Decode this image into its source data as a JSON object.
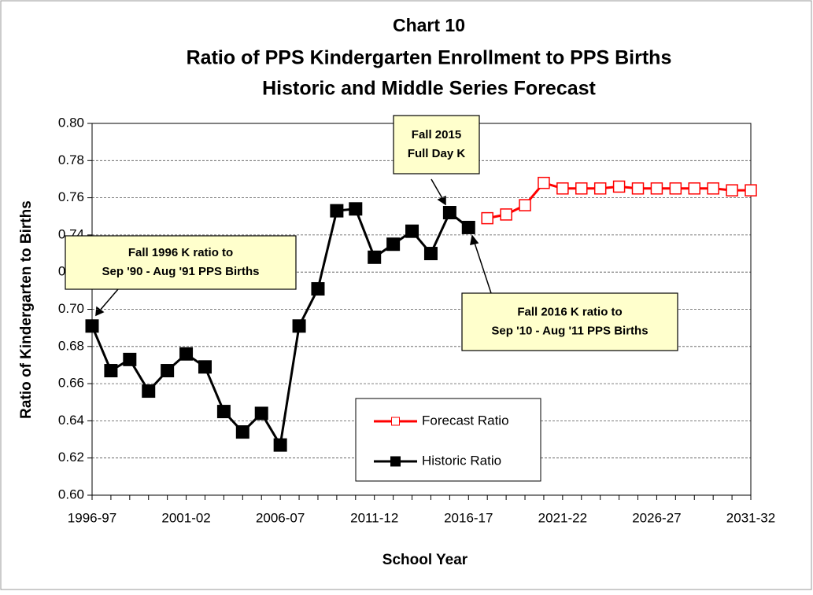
{
  "chart_data": {
    "type": "line",
    "title": "Chart 10",
    "subtitle": [
      "Ratio of PPS Kindergarten Enrollment to PPS Births",
      "Historic and Middle Series Forecast"
    ],
    "x_label": "School Year",
    "y_label": "Ratio of Kindergarten to Births",
    "categories": [
      "1996-97",
      null,
      null,
      null,
      null,
      "2001-02",
      null,
      null,
      null,
      null,
      "2006-07",
      null,
      null,
      null,
      null,
      "2011-12",
      null,
      null,
      null,
      null,
      "2016-17",
      null,
      null,
      null,
      null,
      "2021-22",
      null,
      null,
      null,
      null,
      "2026-27",
      null,
      null,
      null,
      null,
      "2031-32"
    ],
    "series": [
      {
        "name": "Forecast Ratio",
        "color": "#ff0000",
        "marker": "open-square",
        "values": [
          null,
          null,
          null,
          null,
          null,
          null,
          null,
          null,
          null,
          null,
          null,
          null,
          null,
          null,
          null,
          null,
          null,
          null,
          null,
          null,
          null,
          0.749,
          0.751,
          0.756,
          0.768,
          0.765,
          0.765,
          0.765,
          0.766,
          0.765,
          0.765,
          0.765,
          0.765,
          0.765,
          0.764,
          0.764
        ]
      },
      {
        "name": "Historic Ratio",
        "color": "#000000",
        "marker": "filled-square",
        "values": [
          0.691,
          0.667,
          0.673,
          0.656,
          0.667,
          0.676,
          0.669,
          0.645,
          0.634,
          0.644,
          0.627,
          0.691,
          0.711,
          0.753,
          0.754,
          0.728,
          0.735,
          0.742,
          0.73,
          0.752,
          0.744,
          null,
          null,
          null,
          null,
          null,
          null,
          null,
          null,
          null,
          null,
          null,
          null,
          null,
          null,
          null
        ]
      }
    ],
    "ylim": [
      0.6,
      0.8
    ],
    "yticks": [
      {
        "value": 0.6,
        "label": "0.60"
      },
      {
        "value": 0.62,
        "label": "0.62"
      },
      {
        "value": 0.64,
        "label": "0.64"
      },
      {
        "value": 0.66,
        "label": "0.66"
      },
      {
        "value": 0.68,
        "label": "0.68"
      },
      {
        "value": 0.7,
        "label": "0.70"
      },
      {
        "value": 0.72,
        "label": "0.72"
      },
      {
        "value": 0.74,
        "label": "0.74"
      },
      {
        "value": 0.76,
        "label": "0.76"
      },
      {
        "value": 0.78,
        "label": "0.78"
      },
      {
        "value": 0.8,
        "label": "0.80"
      }
    ],
    "grid": true,
    "annotations": [
      {
        "lines": [
          "Fall 1996 K ratio to",
          "Sep '90 - Aug '91 PPS Births"
        ]
      },
      {
        "lines": [
          "Fall 2015",
          "Full Day K"
        ]
      },
      {
        "lines": [
          "Fall 2016 K ratio to",
          "Sep '10 - Aug '11 PPS Births"
        ]
      }
    ]
  }
}
